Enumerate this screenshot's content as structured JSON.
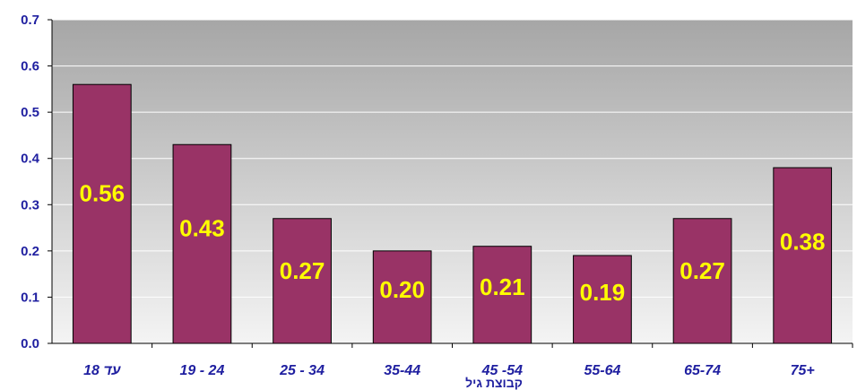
{
  "chart_data": {
    "type": "bar",
    "title": "",
    "xlabel": "קבוצת גיל",
    "ylabel": "",
    "categories": [
      "עד 18",
      "19 - 24",
      "25 - 34",
      "35-44",
      "45 -54",
      "55-64",
      "65-74",
      "75+"
    ],
    "values": [
      0.56,
      0.43,
      0.27,
      0.2,
      0.21,
      0.19,
      0.27,
      0.38
    ],
    "data_labels": [
      "0.56",
      "0.43",
      "0.27",
      "0.20",
      "0.21",
      "0.19",
      "0.27",
      "0.38"
    ],
    "y_ticks": [
      "0.0",
      "0.1",
      "0.2",
      "0.3",
      "0.4",
      "0.5",
      "0.6",
      "0.7"
    ],
    "ylim": [
      0,
      0.7
    ],
    "grid": true,
    "legend": "none",
    "colors": {
      "bar": "#993366",
      "plot_background_top": "#a6a6a6",
      "plot_background_bottom": "#f4f4f4",
      "gridline": "#ffffff",
      "tick_text": "#1f1fa0",
      "data_label": "#ffff00"
    }
  }
}
